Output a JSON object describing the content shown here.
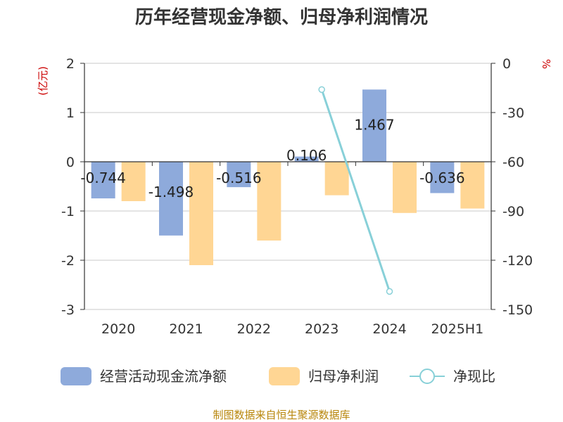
{
  "chart_data": {
    "type": "bar",
    "title": "历年经营现金净额、归母净利润情况",
    "categories": [
      "2020",
      "2021",
      "2022",
      "2023",
      "2024",
      "2025H1"
    ],
    "ylabel_left": "(亿元)",
    "ylabel_right": "%",
    "ylim_left": [
      -3,
      2
    ],
    "yticks_left": [
      "-3",
      "-2",
      "-1",
      "0",
      "1",
      "2"
    ],
    "ylim_right": [
      -150,
      0
    ],
    "yticks_right": [
      "-150",
      "-120",
      "-90",
      "-60",
      "-30",
      "0"
    ],
    "series": [
      {
        "name": "经营活动现金流净额",
        "axis": "left",
        "kind": "bar",
        "color": "#8eaadb",
        "values": [
          -0.744,
          -1.498,
          -0.516,
          0.106,
          1.467,
          -0.636
        ],
        "labels": [
          "-0.744",
          "-1.498",
          "-0.516",
          "0.106",
          "1.467",
          "-0.636"
        ]
      },
      {
        "name": "归母净利润",
        "axis": "left",
        "kind": "bar",
        "color": "#ffd694",
        "values": [
          -0.8,
          -2.1,
          -1.6,
          -0.68,
          -1.04,
          -0.95
        ]
      },
      {
        "name": "净现比",
        "axis": "right",
        "kind": "line",
        "color": "#88d0d8",
        "values": [
          null,
          null,
          null,
          -16,
          -139,
          null
        ]
      }
    ],
    "legend": "bottom",
    "grid": true
  },
  "source": "制图数据来自恒生聚源数据库"
}
